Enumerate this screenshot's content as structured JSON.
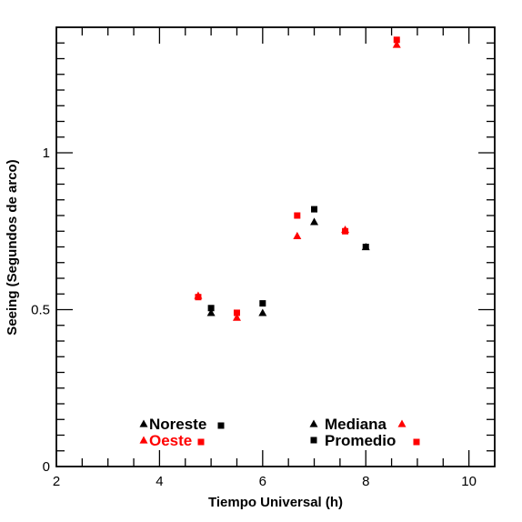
{
  "chart_data": {
    "type": "scatter",
    "xlabel": "Tiempo Universal (h)",
    "ylabel": "Seeing (Segundos de arco)",
    "xlim": [
      2,
      10.5
    ],
    "ylim": [
      0,
      1.4
    ],
    "x_ticks": [
      2,
      4,
      6,
      8,
      10
    ],
    "y_ticks": [
      0,
      0.5,
      1
    ],
    "x_tick_labels": [
      "2",
      "4",
      "6",
      "8",
      "10"
    ],
    "y_tick_labels": [
      "0",
      "0.5",
      "1"
    ],
    "grid": false,
    "series": [
      {
        "group": "Noreste",
        "stat": "Mediana",
        "color": "#000000",
        "marker": "triangle",
        "points": [
          {
            "x": 5.0,
            "y": 0.49
          },
          {
            "x": 6.0,
            "y": 0.49
          },
          {
            "x": 7.0,
            "y": 0.78
          },
          {
            "x": 8.0,
            "y": 0.7
          }
        ]
      },
      {
        "group": "Noreste",
        "stat": "Promedio",
        "color": "#000000",
        "marker": "square",
        "points": [
          {
            "x": 5.0,
            "y": 0.505
          },
          {
            "x": 6.0,
            "y": 0.52
          },
          {
            "x": 7.0,
            "y": 0.82
          },
          {
            "x": 8.0,
            "y": 0.7
          }
        ]
      },
      {
        "group": "Oeste",
        "stat": "Mediana",
        "color": "#ff0000",
        "marker": "triangle",
        "points": [
          {
            "x": 4.75,
            "y": 0.545
          },
          {
            "x": 5.5,
            "y": 0.475
          },
          {
            "x": 6.67,
            "y": 0.735
          },
          {
            "x": 7.6,
            "y": 0.755
          },
          {
            "x": 8.6,
            "y": 1.345
          }
        ]
      },
      {
        "group": "Oeste",
        "stat": "Promedio",
        "color": "#ff0000",
        "marker": "square",
        "points": [
          {
            "x": 4.75,
            "y": 0.54
          },
          {
            "x": 5.5,
            "y": 0.49
          },
          {
            "x": 6.67,
            "y": 0.8
          },
          {
            "x": 7.6,
            "y": 0.75
          },
          {
            "x": 8.6,
            "y": 1.36
          }
        ]
      }
    ],
    "legend": {
      "groups": [
        {
          "label": "Noreste",
          "color": "#000000"
        },
        {
          "label": "Oeste",
          "color": "#ff0000"
        }
      ],
      "stats": [
        {
          "label": "Mediana",
          "marker": "triangle"
        },
        {
          "label": "Promedio",
          "marker": "square"
        }
      ]
    }
  }
}
